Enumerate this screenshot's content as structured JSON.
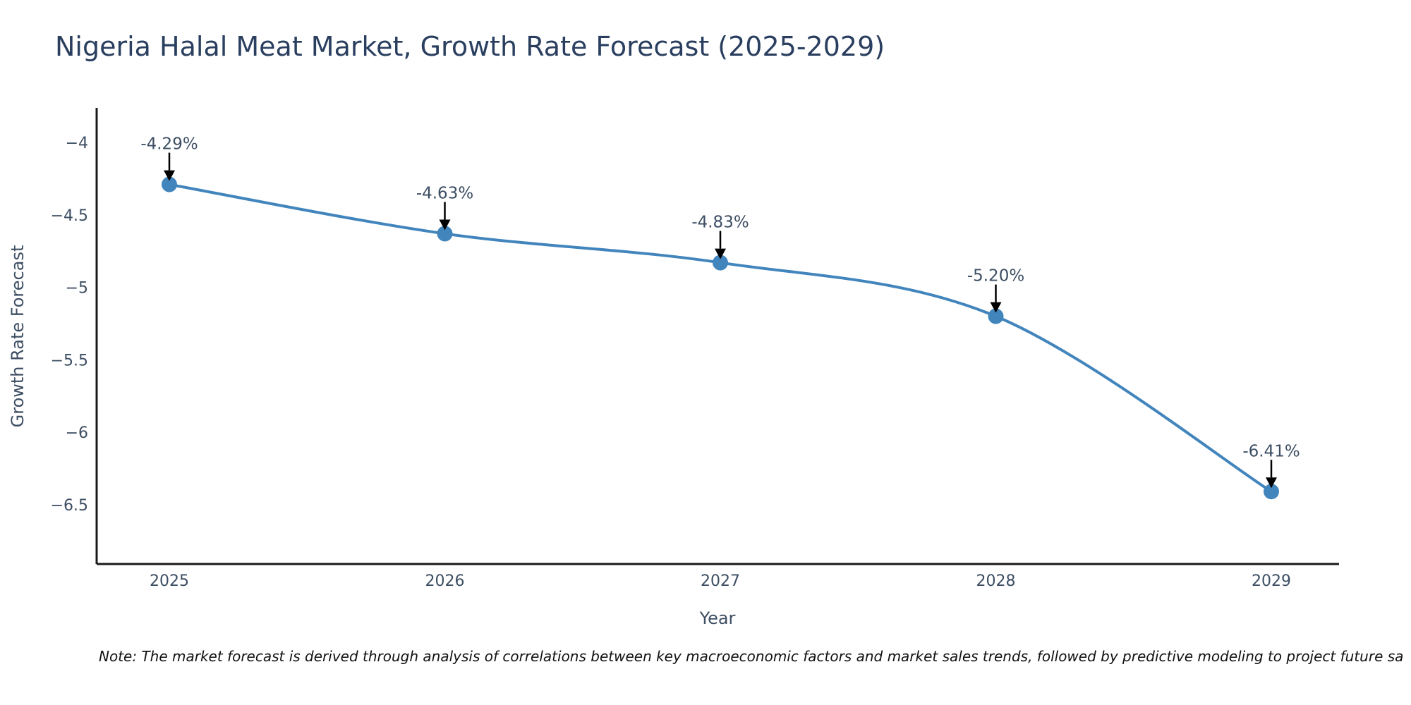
{
  "title": "Nigeria Halal Meat Market, Growth Rate Forecast (2025-2029)",
  "footnote": "Note: The market forecast is derived through analysis of correlations between key macroeconomic factors and market sales trends, followed by predictive modeling to project future sa",
  "colors": {
    "line": "#4285bd",
    "marker": "#4285bd",
    "title": "#2a3f5f",
    "tick_text": "#3d4e63",
    "axis_line": "#1a1a1a",
    "arrow": "#000000",
    "background": "#ffffff"
  },
  "chart_data": {
    "type": "line",
    "title": "Nigeria Halal Meat Market, Growth Rate Forecast (2025-2029)",
    "xlabel": "Year",
    "ylabel": "Growth Rate Forecast",
    "x": [
      2025,
      2026,
      2027,
      2028,
      2029
    ],
    "xtick_labels": [
      "2025",
      "2026",
      "2027",
      "2028",
      "2029"
    ],
    "series": [
      {
        "name": "Growth Rate Forecast",
        "values": [
          -4.29,
          -4.63,
          -4.83,
          -5.2,
          -6.41
        ],
        "point_labels": [
          "-4.29%",
          "-4.63%",
          "-4.83%",
          "-5.20%",
          "-6.41%"
        ]
      }
    ],
    "ytick_values": [
      -4,
      -4.5,
      -5,
      -5.5,
      -6,
      -6.5
    ],
    "ytick_labels": [
      "−4",
      "−4.5",
      "−5",
      "−5.5",
      "−6",
      "−6.5"
    ],
    "ylim": [
      -6.91,
      -3.76
    ],
    "grid": false,
    "legend": "none",
    "line_shape": "spline",
    "annotations_arrow": true
  }
}
